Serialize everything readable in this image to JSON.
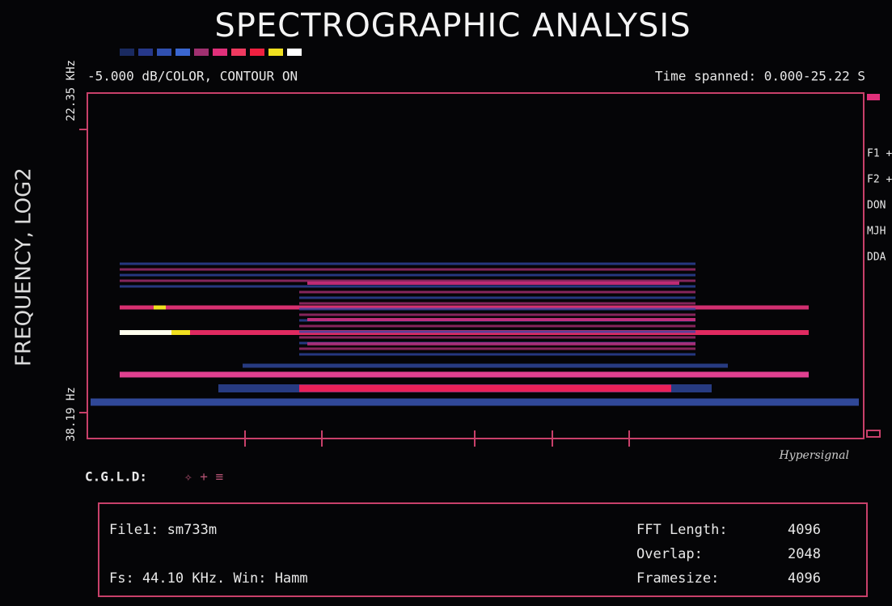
{
  "header": {
    "title": "SPECTROGRAPHIC ANALYSIS",
    "scale_note": "-5.000 dB/COLOR, CONTOUR ON",
    "time_spanned": "Time spanned: 0.000-25.22 S"
  },
  "axis": {
    "top_freq": "22.35 KHz",
    "bottom_freq": "38.19 Hz",
    "label": "FREQUENCY, LOG2"
  },
  "side_menu": [
    "F1 +",
    "F2 +",
    "DON",
    "MJH",
    "DDA"
  ],
  "brand": "Hypersignal",
  "cursor_label": "C.G.L.D:",
  "info": {
    "file": "File1: sm733m",
    "fs": "Fs: 44.10 KHz. Win: Hamm",
    "params": [
      {
        "name": "FFT Length:",
        "value": "4096"
      },
      {
        "name": "Overlap:",
        "value": "2048"
      },
      {
        "name": "Framesize:",
        "value": "4096"
      }
    ]
  }
}
